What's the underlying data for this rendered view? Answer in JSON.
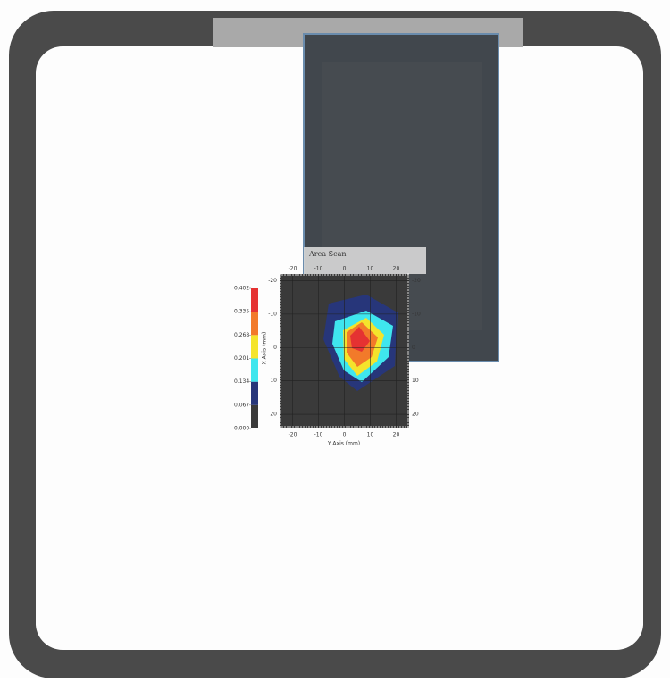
{
  "chart_data": {
    "type": "contour",
    "title": "Area Scan",
    "x_label": "Y Axis (mm)",
    "y_label": "X Axis (mm)",
    "xlim": [
      -25,
      25
    ],
    "ylim": [
      -22,
      24
    ],
    "xticks": [
      -20,
      -10,
      0,
      10,
      20
    ],
    "yticks": [
      -20,
      -10,
      0,
      10,
      20
    ],
    "levels": [
      {
        "value": 0.0,
        "label": "0.000"
      },
      {
        "value": 0.067,
        "label": "0.067"
      },
      {
        "value": 0.134,
        "label": "0.134"
      },
      {
        "value": 0.201,
        "label": "0.201"
      },
      {
        "value": 0.268,
        "label": "0.268"
      },
      {
        "value": 0.335,
        "label": "0.335"
      },
      {
        "value": 0.402,
        "label": "0.402"
      }
    ],
    "colors": [
      "#3a3a3a",
      "#27367a",
      "#3fe6ee",
      "#f4e42c",
      "#f27a2a",
      "#e53232"
    ]
  }
}
